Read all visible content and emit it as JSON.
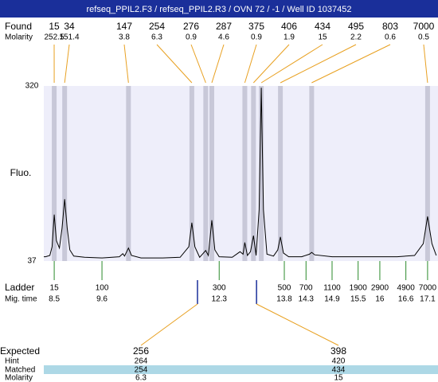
{
  "chart_data": {
    "type": "line",
    "title": "refseq_PPIL2.F3 / refseq_PPIL2.R3 / OVN 72 / -1 / Well ID 1037452",
    "ylabel": "Fluo.",
    "xlim": [
      8.26,
      17.34
    ],
    "ylim": [
      37,
      320
    ],
    "yticks": [
      37,
      320
    ],
    "color": "#000000",
    "plot_color": "#eeeefa",
    "band_color": "#c8c8d8",
    "x": [
      8.26,
      8.3,
      8.4,
      8.45,
      8.5,
      8.55,
      8.62,
      8.68,
      8.74,
      8.8,
      8.86,
      8.95,
      9.2,
      9.6,
      10.0,
      10.08,
      10.12,
      10.21,
      10.28,
      10.5,
      11.0,
      11.4,
      11.6,
      11.67,
      11.74,
      11.85,
      11.99,
      12.05,
      12.13,
      12.2,
      12.3,
      12.6,
      12.78,
      12.85,
      12.89,
      12.95,
      13.02,
      13.09,
      13.15,
      13.22,
      13.27,
      13.32,
      13.4,
      13.55,
      13.65,
      13.71,
      13.78,
      13.9,
      14.2,
      14.38,
      14.43,
      14.5,
      14.9,
      15.3,
      15.9,
      16.4,
      16.8,
      17.0,
      17.1,
      17.2,
      17.3
    ],
    "values": [
      44,
      44,
      46,
      60,
      112,
      70,
      58,
      90,
      137,
      90,
      55,
      45,
      43,
      42,
      44,
      49,
      45,
      58,
      46,
      42,
      42,
      43,
      60,
      99,
      60,
      43,
      54,
      46,
      103,
      55,
      44,
      43,
      52,
      48,
      67,
      46,
      52,
      78,
      46,
      120,
      317,
      120,
      48,
      45,
      55,
      76,
      50,
      44,
      44,
      48,
      51,
      47,
      44,
      44,
      44,
      44,
      46,
      65,
      109,
      65,
      46
    ]
  },
  "found": {
    "label": "Found",
    "molarity_label": "Molarity",
    "sizes": [
      15,
      34,
      147,
      254,
      276,
      287,
      375,
      406,
      434,
      495,
      803,
      7000
    ],
    "molarity": [
      252.5,
      151.4,
      3.8,
      6.3,
      0.9,
      4.6,
      0.9,
      1.9,
      15,
      2.2,
      0.6,
      0.5
    ],
    "mig_times": [
      8.5,
      8.74,
      10.21,
      11.67,
      11.99,
      12.13,
      12.89,
      13.09,
      13.27,
      13.71,
      14.43,
      17.1
    ]
  },
  "ladder": {
    "label": "Ladder",
    "mig_label": "Mig. time",
    "sizes": [
      15,
      100,
      300,
      500,
      700,
      1100,
      1900,
      2900,
      4900,
      7000
    ],
    "mig_times": [
      8.5,
      9.6,
      12.3,
      13.8,
      14.3,
      14.9,
      15.5,
      16,
      16.6,
      17.1
    ]
  },
  "expected": {
    "label": "Expected",
    "hint_label": "Hint",
    "matched_label": "Matched",
    "molarity_label": "Molarity",
    "sizes": [
      256,
      398
    ],
    "hints": [
      264,
      420
    ],
    "matched": [
      254,
      434
    ],
    "molarity": [
      6.3,
      15
    ],
    "mig_times": [
      11.8,
      13.16
    ]
  }
}
